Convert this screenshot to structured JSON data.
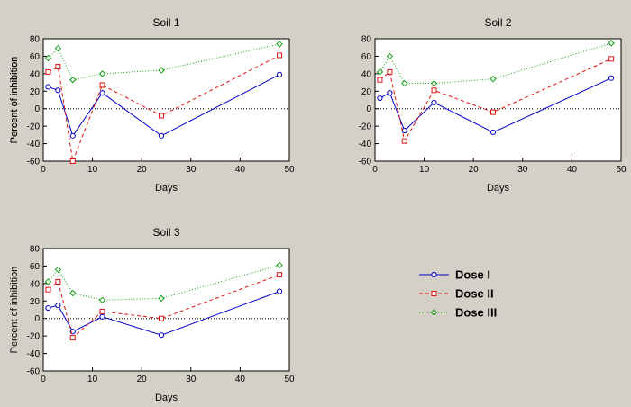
{
  "chart_data": [
    {
      "type": "line",
      "title": "Soil 1",
      "xlabel": "Days",
      "ylabel": "Percent of inhibition",
      "xlim": [
        0,
        50
      ],
      "ylim": [
        -60,
        80
      ],
      "xticks": [
        0,
        10,
        20,
        30,
        40,
        50
      ],
      "yticks": [
        -60,
        -40,
        -20,
        0,
        20,
        40,
        60,
        80
      ],
      "zero_line": true,
      "x": [
        1,
        3,
        6,
        12,
        24,
        48
      ],
      "series": [
        {
          "name": "Dose I",
          "values": [
            25,
            21,
            -31,
            18,
            -31,
            39
          ]
        },
        {
          "name": "Dose II",
          "values": [
            42,
            48,
            -60,
            27,
            -8,
            61
          ]
        },
        {
          "name": "Dose III",
          "values": [
            58,
            69,
            33,
            40,
            44,
            74
          ]
        }
      ]
    },
    {
      "type": "line",
      "title": "Soil 2",
      "xlabel": "Days",
      "ylabel": "Percent of inhibition",
      "xlim": [
        0,
        50
      ],
      "ylim": [
        -60,
        80
      ],
      "xticks": [
        0,
        10,
        20,
        30,
        40,
        50
      ],
      "yticks": [
        -60,
        -40,
        -20,
        0,
        20,
        40,
        60,
        80
      ],
      "zero_line": true,
      "x": [
        1,
        3,
        6,
        12,
        24,
        48
      ],
      "series": [
        {
          "name": "Dose I",
          "values": [
            12,
            18,
            -25,
            7,
            -27,
            35
          ]
        },
        {
          "name": "Dose II",
          "values": [
            33,
            42,
            -37,
            21,
            -4,
            57
          ]
        },
        {
          "name": "Dose III",
          "values": [
            42,
            60,
            29,
            29,
            34,
            75
          ]
        }
      ]
    },
    {
      "type": "line",
      "title": "Soil 3",
      "xlabel": "Days",
      "ylabel": "Percent of inhibition",
      "xlim": [
        0,
        50
      ],
      "ylim": [
        -60,
        80
      ],
      "xticks": [
        0,
        10,
        20,
        30,
        40,
        50
      ],
      "yticks": [
        -60,
        -40,
        -20,
        0,
        20,
        40,
        60,
        80
      ],
      "zero_line": true,
      "x": [
        1,
        3,
        6,
        12,
        24,
        48
      ],
      "series": [
        {
          "name": "Dose I",
          "values": [
            12,
            15,
            -15,
            2,
            -19,
            31
          ]
        },
        {
          "name": "Dose II",
          "values": [
            33,
            42,
            -22,
            8,
            0,
            50
          ]
        },
        {
          "name": "Dose III",
          "values": [
            42,
            56,
            29,
            21,
            23,
            61
          ]
        }
      ]
    }
  ],
  "legend": {
    "placement": "right",
    "items": [
      {
        "label": "Dose I",
        "color": "#0000cc",
        "marker": "circle",
        "line": "solid"
      },
      {
        "label": "Dose II",
        "color": "#e01010",
        "marker": "square",
        "line": "dashed"
      },
      {
        "label": "Dose III",
        "color": "#10a010",
        "marker": "diamond",
        "line": "dotted"
      }
    ]
  },
  "colors": {
    "background": "#d4d0c8",
    "plot_area": "#ffffff"
  }
}
